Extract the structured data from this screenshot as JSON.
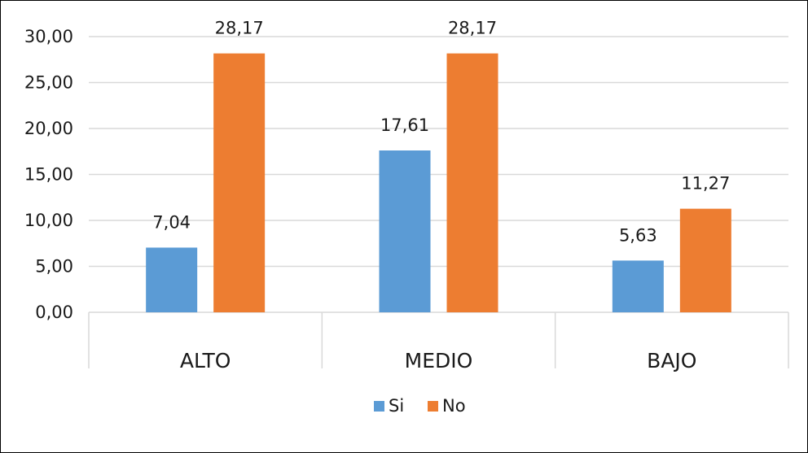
{
  "chart_data": {
    "type": "bar",
    "title": "",
    "xlabel": "",
    "ylabel": "",
    "categories": [
      "ALTO",
      "MEDIO",
      "BAJO"
    ],
    "series": [
      {
        "name": "Si",
        "color": "#5b9bd5",
        "values": [
          7.04,
          17.61,
          5.63
        ],
        "labels": [
          "7,04",
          "17,61",
          "5,63"
        ]
      },
      {
        "name": "No",
        "color": "#ed7d31",
        "values": [
          28.17,
          28.17,
          11.27
        ],
        "labels": [
          "28,17",
          "28,17",
          "11,27"
        ]
      }
    ],
    "ylim": [
      0,
      30
    ],
    "yticks": [
      0,
      5,
      10,
      15,
      20,
      25,
      30
    ],
    "ytick_labels": [
      "0,00",
      "5,00",
      "10,00",
      "15,00",
      "20,00",
      "25,00",
      "30,00"
    ],
    "grid": true,
    "gridline_color": "#d9d9d9",
    "legend_position": "bottom"
  }
}
